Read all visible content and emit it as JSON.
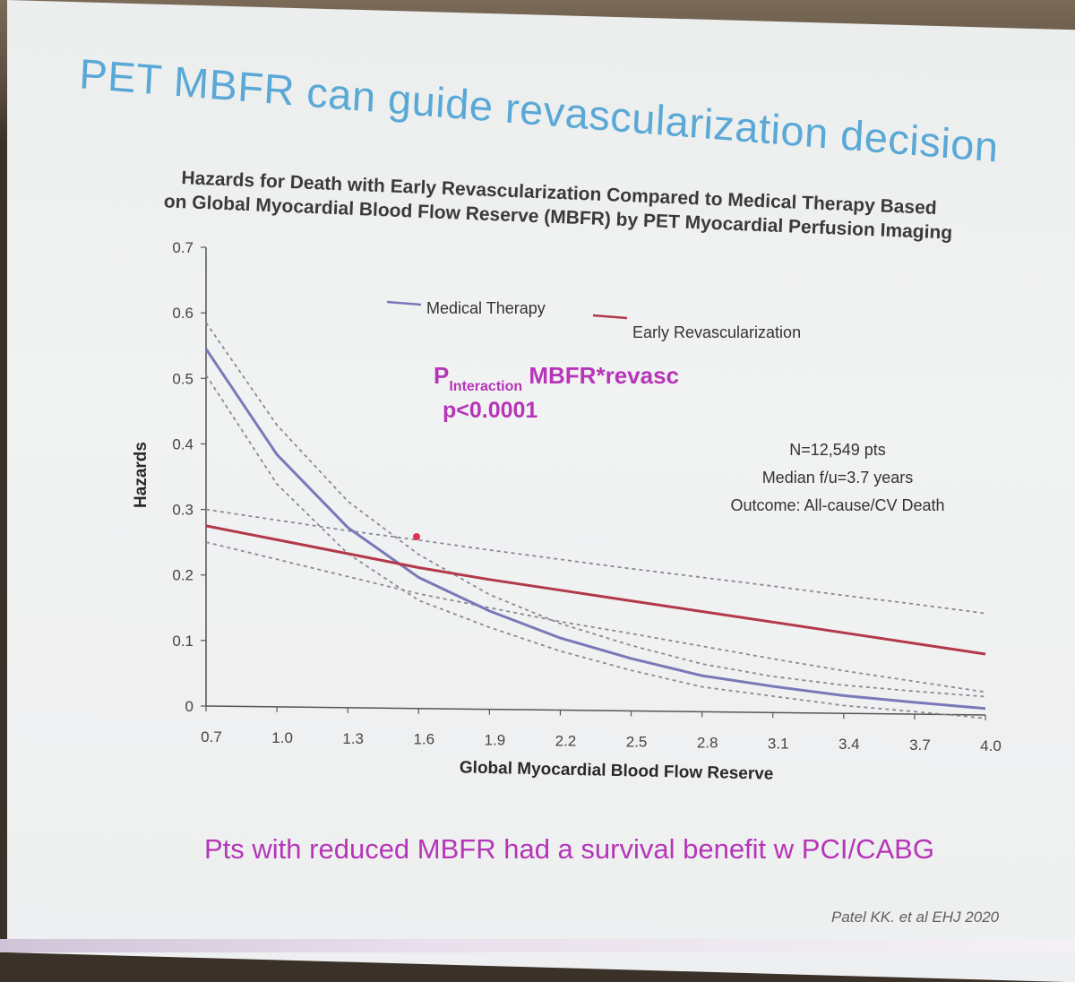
{
  "slide": {
    "title": "PET MBFR can guide revascularization decision",
    "footer": "Pts with reduced MBFR had a survival benefit w PCI/CABG",
    "citation": "Patel KK. et al EHJ 2020"
  },
  "chart_data": {
    "type": "line",
    "title_line1": "Hazards for Death with Early Revascularization Compared to Medical Therapy Based",
    "title_line2": "on Global Myocardial Blood Flow Reserve (MBFR) by PET Myocardial Perfusion Imaging",
    "xlabel": "Global Myocardial Blood Flow Reserve",
    "ylabel": "Hazards",
    "xlim": [
      0.7,
      4.0
    ],
    "ylim": [
      0,
      0.7
    ],
    "x_ticks": [
      "0.7",
      "1.0",
      "1.3",
      "1.6",
      "1.9",
      "2.2",
      "2.5",
      "2.8",
      "3.1",
      "3.4",
      "3.7",
      "4.0"
    ],
    "y_ticks": [
      "0",
      "0.1",
      "0.2",
      "0.3",
      "0.4",
      "0.5",
      "0.6",
      "0.7"
    ],
    "legend": {
      "position": "top-center",
      "medical": "Medical Therapy",
      "revasc": "Early Revascularization"
    },
    "annotation_p_main": "P",
    "annotation_p_sub": "Interaction",
    "annotation_p_rest": " MBFR*revasc",
    "annotation_p_value": "p<0.0001",
    "stats": [
      "N=12,549 pts",
      "Median f/u=3.7 years",
      "Outcome: All-cause/CV Death"
    ],
    "series": [
      {
        "name": "Medical Therapy",
        "color": "#7a78b8",
        "x": [
          0.7,
          1.0,
          1.3,
          1.6,
          1.9,
          2.2,
          2.5,
          2.8,
          3.1,
          3.4,
          3.7,
          4.0
        ],
        "y": [
          0.545,
          0.385,
          0.275,
          0.2,
          0.15,
          0.11,
          0.08,
          0.055,
          0.04,
          0.027,
          0.018,
          0.01
        ],
        "ci_upper": [
          0.585,
          0.43,
          0.315,
          0.235,
          0.175,
          0.132,
          0.1,
          0.073,
          0.055,
          0.043,
          0.035,
          0.028
        ],
        "ci_lower": [
          0.505,
          0.34,
          0.235,
          0.165,
          0.125,
          0.09,
          0.062,
          0.038,
          0.025,
          0.012,
          0.004,
          -0.005
        ]
      },
      {
        "name": "Early Revascularization",
        "color": "#b2384a",
        "x": [
          0.7,
          1.0,
          1.3,
          1.6,
          1.9,
          2.2,
          2.5,
          2.8,
          3.1,
          3.4,
          3.7,
          4.0
        ],
        "y": [
          0.275,
          0.255,
          0.235,
          0.215,
          0.198,
          0.183,
          0.168,
          0.153,
          0.138,
          0.123,
          0.108,
          0.093
        ],
        "ci_upper": [
          0.3,
          0.285,
          0.27,
          0.257,
          0.243,
          0.23,
          0.217,
          0.205,
          0.193,
          0.18,
          0.168,
          0.155
        ],
        "ci_lower": [
          0.25,
          0.225,
          0.2,
          0.175,
          0.155,
          0.135,
          0.118,
          0.1,
          0.082,
          0.065,
          0.05,
          0.035
        ]
      }
    ]
  }
}
